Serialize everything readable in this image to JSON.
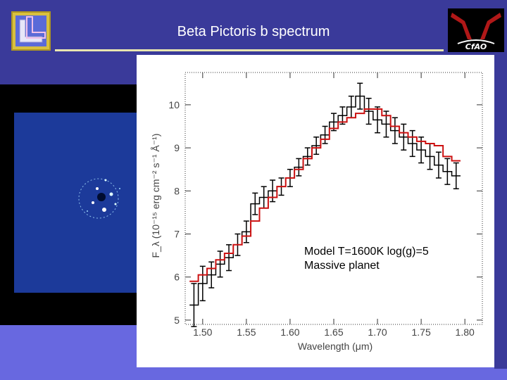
{
  "slide": {
    "title": "Beta Pictoris b spectrum",
    "logos": {
      "left": "llnl-logo",
      "right": "cfao-logo"
    },
    "colors": {
      "background": "#3a3a9a",
      "accent": "#6868e0",
      "title_rule": "#e8e6b0"
    }
  },
  "chart_data": {
    "type": "line",
    "xlabel": "Wavelength (μm)",
    "ylabel": "F_λ (10⁻¹⁵ erg cm⁻² s⁻¹ Å⁻¹)",
    "xlim": [
      1.48,
      1.82
    ],
    "ylim": [
      4.9,
      10.75
    ],
    "xticks": [
      "1.50",
      "1.55",
      "1.60",
      "1.65",
      "1.70",
      "1.75",
      "1.80"
    ],
    "yticks": [
      "5",
      "6",
      "7",
      "8",
      "9",
      "10"
    ],
    "annotation": [
      "Model T=1600K log(g)=5",
      "Massive planet"
    ],
    "series": [
      {
        "color": "#000000",
        "style": "step-errorbars",
        "x": [
          1.49,
          1.5,
          1.51,
          1.52,
          1.53,
          1.54,
          1.55,
          1.56,
          1.57,
          1.58,
          1.59,
          1.6,
          1.61,
          1.62,
          1.63,
          1.64,
          1.65,
          1.66,
          1.67,
          1.68,
          1.69,
          1.7,
          1.71,
          1.72,
          1.73,
          1.74,
          1.75,
          1.76,
          1.77,
          1.78,
          1.79
        ],
        "y": [
          5.35,
          5.85,
          6.05,
          6.3,
          6.45,
          6.75,
          7.05,
          7.7,
          7.85,
          8.0,
          8.1,
          8.3,
          8.55,
          8.8,
          9.05,
          9.3,
          9.6,
          9.75,
          9.95,
          10.2,
          9.85,
          9.65,
          9.55,
          9.4,
          9.25,
          9.1,
          8.95,
          8.8,
          8.6,
          8.45,
          8.35
        ],
        "err": [
          0.5,
          0.4,
          0.3,
          0.3,
          0.3,
          0.25,
          0.25,
          0.25,
          0.25,
          0.25,
          0.2,
          0.2,
          0.2,
          0.2,
          0.2,
          0.2,
          0.2,
          0.2,
          0.25,
          0.3,
          0.3,
          0.3,
          0.3,
          0.3,
          0.3,
          0.3,
          0.3,
          0.3,
          0.3,
          0.3,
          0.3
        ]
      },
      {
        "color": "#cc1111",
        "style": "step",
        "x": [
          1.49,
          1.5,
          1.51,
          1.52,
          1.53,
          1.54,
          1.55,
          1.56,
          1.57,
          1.58,
          1.59,
          1.6,
          1.61,
          1.62,
          1.63,
          1.64,
          1.65,
          1.66,
          1.67,
          1.68,
          1.69,
          1.7,
          1.71,
          1.72,
          1.73,
          1.74,
          1.75,
          1.76,
          1.77,
          1.78,
          1.79
        ],
        "y": [
          5.9,
          6.05,
          6.2,
          6.4,
          6.55,
          6.75,
          6.95,
          7.3,
          7.6,
          7.85,
          8.1,
          8.3,
          8.5,
          8.75,
          9.0,
          9.2,
          9.45,
          9.6,
          9.7,
          9.8,
          9.9,
          9.9,
          9.75,
          9.5,
          9.35,
          9.25,
          9.15,
          9.1,
          9.05,
          8.8,
          8.7
        ]
      }
    ]
  }
}
